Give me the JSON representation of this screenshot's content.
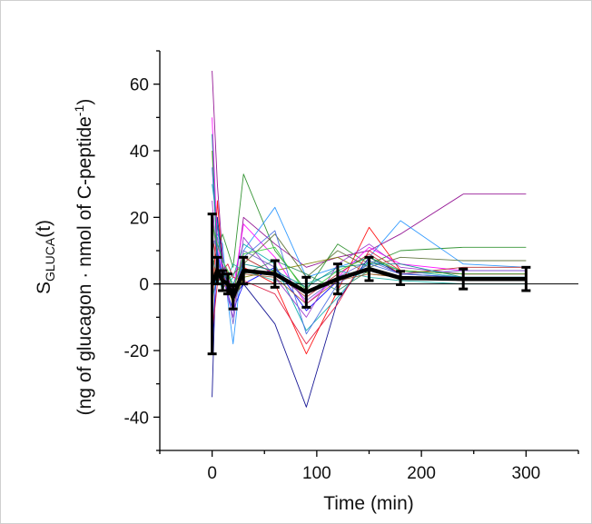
{
  "chart_data": {
    "type": "line",
    "xlabel": "Time (min)",
    "ylabel_main": "S",
    "ylabel_sub": "GLUCA",
    "ylabel_suffix": "(t)",
    "ylabel_line2": "(ng of glucagon · nmol of C-peptide",
    "ylabel_line2_sup": "-1",
    "ylabel_line2_end": ")",
    "xlim": [
      -50,
      350
    ],
    "ylim": [
      -50,
      70
    ],
    "x_ticks": [
      0,
      100,
      200,
      300
    ],
    "y_ticks": [
      -40,
      -20,
      0,
      20,
      40,
      60
    ],
    "grid": false,
    "legend": "none",
    "time_points": [
      0,
      5,
      10,
      15,
      20,
      30,
      60,
      90,
      120,
      150,
      180,
      240,
      300
    ],
    "mean_series": {
      "values": [
        0,
        4,
        1,
        0,
        -4,
        4,
        3,
        -2.5,
        1.5,
        4.5,
        1.8,
        1.5,
        1.5
      ],
      "error": [
        21,
        4,
        3,
        3,
        3.5,
        4,
        4,
        4.5,
        4.5,
        3.5,
        2,
        3,
        3.5
      ],
      "color": "#000000"
    },
    "individual_series": [
      {
        "color": "#8b008b",
        "values": [
          64,
          30,
          8,
          2,
          -6,
          20,
          12,
          5,
          8,
          10,
          15,
          27,
          27
        ]
      },
      {
        "color": "#228b22",
        "values": [
          5,
          10,
          15,
          10,
          5,
          33,
          10,
          -2,
          12,
          6,
          10,
          11,
          11
        ]
      },
      {
        "color": "#1e90ff",
        "values": [
          10,
          15,
          12,
          -5,
          -18,
          10,
          23,
          2,
          5,
          8,
          19,
          6,
          5
        ]
      },
      {
        "color": "#ff0000",
        "values": [
          -10,
          25,
          5,
          -2,
          -5,
          5,
          0,
          -21,
          -2,
          17,
          4,
          3,
          3
        ]
      },
      {
        "color": "#00008b",
        "values": [
          -34,
          20,
          6,
          0,
          -4,
          0,
          -12,
          -37,
          -5,
          8,
          3,
          2,
          2
        ]
      },
      {
        "color": "#00aaaa",
        "values": [
          30,
          18,
          3,
          0,
          2,
          12,
          6,
          -14,
          -4,
          7,
          4,
          2,
          2
        ]
      },
      {
        "color": "#ff00ff",
        "values": [
          50,
          12,
          4,
          2,
          -2,
          18,
          8,
          -6,
          2,
          11,
          6,
          4,
          4
        ]
      },
      {
        "color": "#556b2f",
        "values": [
          20,
          8,
          2,
          1,
          3,
          6,
          15,
          2,
          10,
          5,
          8,
          7,
          7
        ]
      },
      {
        "color": "#808000",
        "values": [
          40,
          8,
          0,
          -1,
          -6,
          2,
          4,
          6,
          8,
          3,
          2,
          2,
          2
        ]
      },
      {
        "color": "#0000ff",
        "values": [
          -20,
          10,
          2,
          -3,
          -8,
          0,
          5,
          -8,
          1,
          5,
          2,
          1,
          1
        ]
      },
      {
        "color": "#b22222",
        "values": [
          15,
          5,
          0,
          4,
          -2,
          8,
          3,
          -4,
          3,
          9,
          3,
          5,
          5
        ]
      },
      {
        "color": "#20b2aa",
        "values": [
          -5,
          3,
          -2,
          2,
          6,
          4,
          1,
          0,
          4,
          2,
          1,
          0,
          0
        ]
      },
      {
        "color": "#9932cc",
        "values": [
          25,
          6,
          3,
          -4,
          -10,
          14,
          2,
          -10,
          6,
          12,
          5,
          3,
          3
        ]
      },
      {
        "color": "#2e8b57",
        "values": [
          8,
          2,
          5,
          1,
          -1,
          3,
          7,
          3,
          -2,
          4,
          2,
          1,
          1
        ]
      },
      {
        "color": "#4169e1",
        "values": [
          35,
          10,
          -1,
          2,
          -5,
          8,
          16,
          -15,
          0,
          6,
          3,
          2,
          2
        ]
      },
      {
        "color": "#dc143c",
        "values": [
          -15,
          0,
          4,
          6,
          2,
          1,
          -3,
          -18,
          -6,
          10,
          4,
          3,
          3
        ]
      },
      {
        "color": "#6a5acd",
        "values": [
          12,
          14,
          6,
          -2,
          -12,
          10,
          5,
          -5,
          2,
          7,
          3,
          4,
          4
        ]
      },
      {
        "color": "#008b8b",
        "values": [
          45,
          4,
          2,
          3,
          0,
          6,
          4,
          -1,
          5,
          6,
          6,
          2,
          2
        ]
      },
      {
        "color": "#a0522d",
        "values": [
          2,
          6,
          -1,
          0,
          -3,
          3,
          2,
          -6,
          1,
          3,
          2,
          1,
          1
        ]
      },
      {
        "color": "#32cd32",
        "values": [
          18,
          12,
          7,
          4,
          -2,
          9,
          11,
          -3,
          4,
          8,
          4,
          3,
          3
        ]
      }
    ]
  }
}
